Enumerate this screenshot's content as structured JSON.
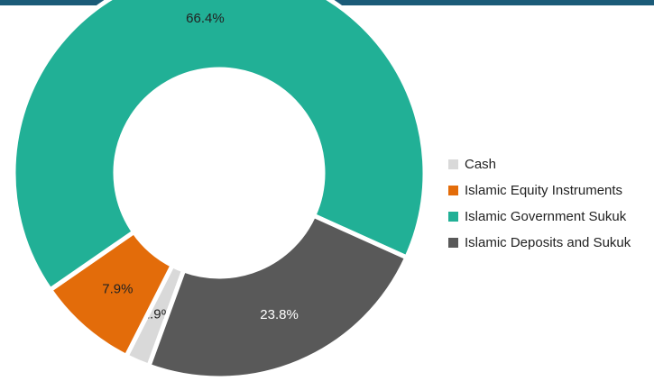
{
  "chart_data": {
    "type": "donut",
    "categories": [
      "Cash",
      "Islamic Equity Instruments",
      "Islamic Government Sukuk",
      "Islamic Deposits and Sukuk"
    ],
    "values": [
      1.9,
      7.9,
      66.4,
      23.8
    ],
    "value_labels": [
      "1.9%",
      "7.9%",
      "66.4%",
      "23.8%"
    ],
    "colors": [
      "#d9d9d9",
      "#e36c0a",
      "#21b096",
      "#595959"
    ],
    "label_colors": [
      "#222222",
      "#222222",
      "#222222",
      "#ffffff"
    ],
    "legend": "right"
  }
}
